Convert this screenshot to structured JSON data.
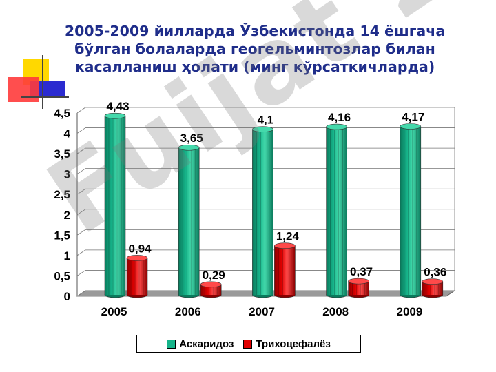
{
  "slide": {
    "title_lines": [
      "2005-2009 йилларда Ўзбекистонда 14 ёшгача",
      "бўлган болаларда геогельминтозлар билан",
      "касалланиш ҳолати (минг кўрсаткичларда)"
    ],
    "watermark": "Fuijat 24"
  },
  "colors": {
    "title": "#1f2d8a",
    "series_ascaridoz": "#16b48a",
    "series_trichocephaloz": "#e00000",
    "deco_yellow": "#ffd800",
    "deco_blue": "#2b2bd0",
    "deco_red": "#ff3030"
  },
  "chart_data": {
    "type": "bar",
    "categories": [
      "2005",
      "2006",
      "2007",
      "2008",
      "2009"
    ],
    "series": [
      {
        "name": "Аскаридоз",
        "values": [
          4.43,
          3.65,
          4.1,
          4.16,
          4.17
        ],
        "labels": [
          "4,43",
          "3,65",
          "4,1",
          "4,16",
          "4,17"
        ]
      },
      {
        "name": "Трихоцефалёз",
        "values": [
          0.94,
          0.29,
          1.24,
          0.37,
          0.36
        ],
        "labels": [
          "0,94",
          "0,29",
          "1,24",
          "0,37",
          "0,36"
        ]
      }
    ],
    "ylim": [
      0,
      4.5
    ],
    "yticks": [
      "0",
      "0,5",
      "1",
      "1,5",
      "2",
      "2,5",
      "3",
      "3,5",
      "4",
      "4,5"
    ],
    "grid": true,
    "legend_position": "bottom",
    "style": "3d-cylinder"
  }
}
